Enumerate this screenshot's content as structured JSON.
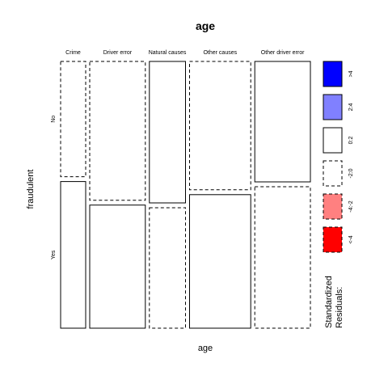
{
  "chart_data": {
    "type": "mosaic",
    "title": "age",
    "xlabel": "age",
    "ylabel": "fraudulent",
    "x_categories": [
      "Crime",
      "Driver error",
      "Natural causes",
      "Other causes",
      "Other driver error"
    ],
    "y_categories": [
      "No",
      "Yes"
    ],
    "x_proportions": [
      0.09,
      0.2,
      0.13,
      0.22,
      0.2
    ],
    "no_fraction": [
      0.44,
      0.53,
      0.54,
      0.49,
      0.46
    ],
    "residual_class": [
      [
        "-2:0",
        "0:2"
      ],
      [
        "-2:0",
        "0:2"
      ],
      [
        "0:2",
        "-2:0"
      ],
      [
        "-2:0",
        "0:2"
      ],
      [
        "0:2",
        "-2:0"
      ]
    ],
    "legend": {
      "title_lines": [
        "Standardized",
        "Residuals:"
      ],
      "items": [
        {
          "label": ">4",
          "color": "#0000ff",
          "dashed": false
        },
        {
          "label": "2:4",
          "color": "#8080ff",
          "dashed": false
        },
        {
          "label": "0:2",
          "color": "#ffffff",
          "dashed": false
        },
        {
          "label": "-2:0",
          "color": "#ffffff",
          "dashed": true
        },
        {
          "label": "-4:-2",
          "color": "#ff8080",
          "dashed": true
        },
        {
          "label": "<-4",
          "color": "#ff0000",
          "dashed": true
        }
      ]
    }
  }
}
